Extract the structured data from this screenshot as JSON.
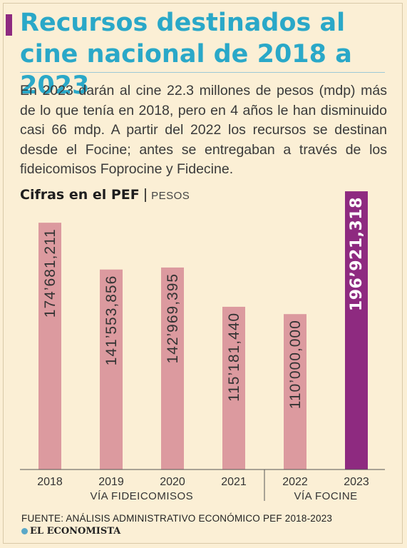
{
  "header": {
    "title": "Recursos destinados al cine nacional de 2018 a 2023",
    "intro": "En 2023 darán al cine 22.3 millones de pesos (mdp) más de lo que tenía en 2018, pero en  4 años le han disminuido casi 66 mdp.  A partir del 2022 los recursos se destinan desde el Focine; antes se entregaban a través de los fideicomisos Foprocine y Fidecine."
  },
  "chart_data": {
    "type": "bar",
    "title": "Cifras en el PEF",
    "unit": "PESOS",
    "categories": [
      "2018",
      "2019",
      "2020",
      "2021",
      "2022",
      "2023"
    ],
    "values": [
      174681211,
      141553856,
      142969395,
      115181440,
      110000000,
      196921318
    ],
    "value_labels": [
      "174’681,211",
      "141’553,856",
      "142’969,395",
      "115’181,440",
      "110’000,000",
      "196’921,318"
    ],
    "groups": [
      {
        "label": "VÍA FIDEICOMISOS",
        "categories": [
          "2018",
          "2019",
          "2020",
          "2021"
        ]
      },
      {
        "label": "VÍA FOCINE",
        "categories": [
          "2022",
          "2023"
        ]
      }
    ],
    "ylim": [
      0,
      200000000
    ],
    "colors": {
      "default": "#dc9a9f",
      "highlight": "#8e2a80",
      "highlight_category": "2023"
    }
  },
  "footer": {
    "source": "FUENTE: ANÁLISIS ADMINISTRATIVO ECONÓMICO PEF 2018-2023",
    "brand": "EL ECONOMISTA"
  }
}
